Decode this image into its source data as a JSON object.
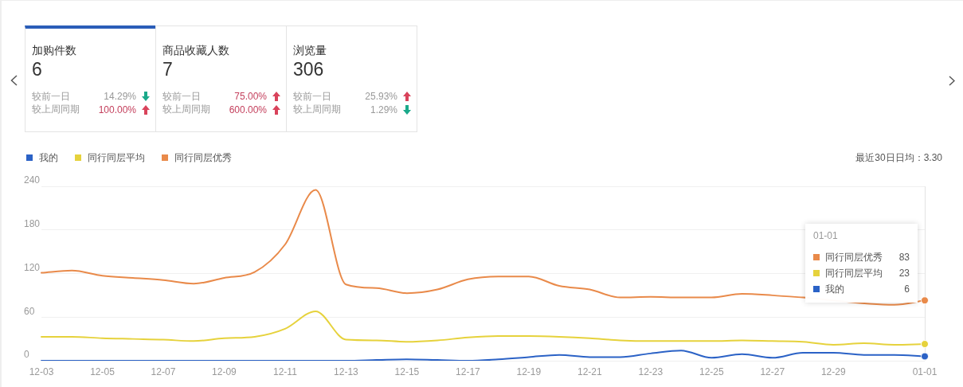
{
  "chart_data": [
    {
      "type": "other",
      "categories": [
        "加购件数",
        "商品收藏人数",
        "浏览量"
      ],
      "values": [
        6,
        7,
        306
      ],
      "data_labels": true,
      "annotations": [
        "较前一日",
        "14.29%",
        "较上周同期",
        "100.00%",
        "较前一日",
        "75.00%",
        "较上周同期",
        "600.00%",
        "较前一日",
        "25.93%",
        "较上周同期",
        "1.29%"
      ]
    },
    {
      "type": "line",
      "categories": [
        "12-03",
        null,
        "12-05",
        null,
        "12-07",
        null,
        "12-09",
        null,
        "12-11",
        null,
        "12-13",
        null,
        "12-15",
        null,
        "12-17",
        null,
        "12-19",
        null,
        "12-21",
        null,
        "12-23",
        null,
        "12-25",
        null,
        "12-27",
        null,
        "12-29",
        null,
        null,
        "01-01"
      ],
      "series": [
        {
          "name": "我的",
          "color": "#2b62c6",
          "values": [
            0,
            0,
            0,
            0,
            0,
            0,
            0,
            0,
            0,
            0,
            0,
            1,
            2,
            1,
            0,
            2,
            5,
            8,
            5,
            5,
            10,
            14,
            4,
            9,
            4,
            11,
            11,
            8,
            8,
            6
          ]
        },
        {
          "name": "同行同层平均",
          "color": "#e6d23c",
          "values": [
            33,
            33,
            31,
            30,
            29,
            27,
            31,
            33,
            44,
            68,
            29,
            28,
            26,
            28,
            32,
            34,
            34,
            33,
            31,
            28,
            27,
            27,
            27,
            28,
            27,
            26,
            22,
            24,
            22,
            23
          ]
        },
        {
          "name": "同行同层优秀",
          "color": "#e98a4a",
          "values": [
            121,
            124,
            117,
            114,
            111,
            106,
            114,
            122,
            160,
            235,
            105,
            100,
            93,
            98,
            112,
            116,
            116,
            103,
            98,
            87,
            88,
            87,
            87,
            92,
            90,
            87,
            null,
            null,
            77,
            83
          ]
        }
      ],
      "ylim": [
        0,
        240
      ],
      "yticks": [
        0,
        60,
        120,
        180,
        240
      ],
      "grid": "y",
      "legend": "top left",
      "ref_lines": [
        {
          "axis": "x",
          "value": "01-01",
          "color": "#e3e3e3"
        }
      ],
      "annotations": [
        "最近30日日均：3.30",
        "01-01",
        "同行同层优秀",
        "83",
        "同行同层平均",
        "23",
        "我的",
        "6"
      ]
    }
  ]
}
